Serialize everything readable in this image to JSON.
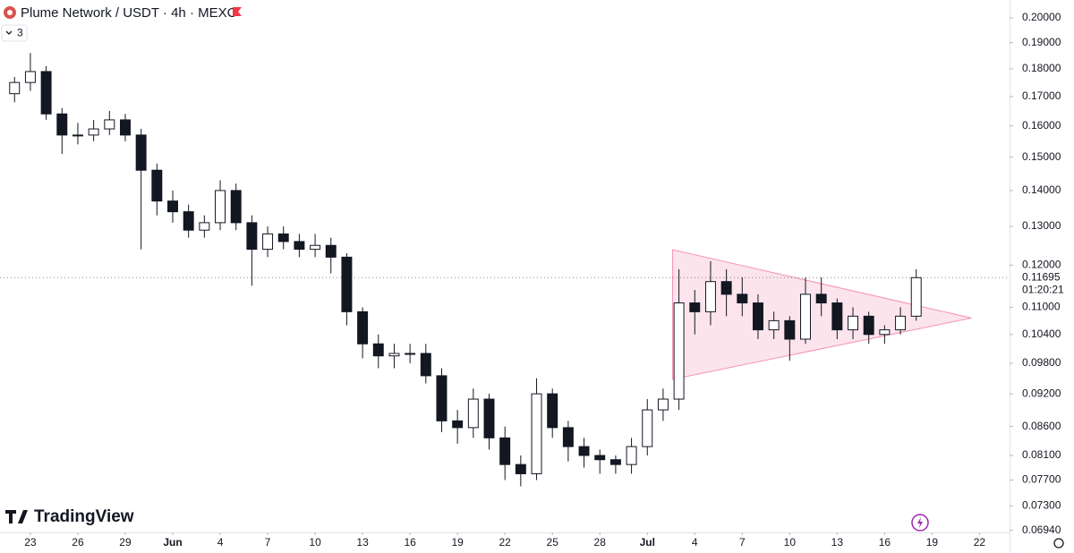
{
  "chart_data": {
    "type": "candlestick",
    "title": "Plume Network / USDT · 4h · MEXC",
    "indicator_count": "3",
    "brand": "TradingView",
    "log": true,
    "color_up": "#ffffff",
    "color_down": "#131722",
    "outline": "#131722",
    "xlim": [
      -1.92,
      61.9
    ],
    "xticks": [
      {
        "value": 0,
        "label": "23"
      },
      {
        "value": 3,
        "label": "26"
      },
      {
        "value": 6,
        "label": "29"
      },
      {
        "value": 9,
        "label": "Jun"
      },
      {
        "value": 12,
        "label": "4"
      },
      {
        "value": 15,
        "label": "7"
      },
      {
        "value": 18,
        "label": "10"
      },
      {
        "value": 21,
        "label": "13"
      },
      {
        "value": 24,
        "label": "16"
      },
      {
        "value": 27,
        "label": "19"
      },
      {
        "value": 30,
        "label": "22"
      },
      {
        "value": 33,
        "label": "25"
      },
      {
        "value": 36,
        "label": "28"
      },
      {
        "value": 39,
        "label": "Jul"
      },
      {
        "value": 42,
        "label": "4"
      },
      {
        "value": 45,
        "label": "7"
      },
      {
        "value": 48,
        "label": "10"
      },
      {
        "value": 51,
        "label": "13"
      },
      {
        "value": 54,
        "label": "16"
      },
      {
        "value": 57,
        "label": "19"
      },
      {
        "value": 60,
        "label": "22"
      }
    ],
    "ylim": [
      0.0691,
      0.2075
    ],
    "yticks": [
      {
        "value": 0.2,
        "label": "0.20000"
      },
      {
        "value": 0.19,
        "label": "0.19000"
      },
      {
        "value": 0.18,
        "label": "0.18000"
      },
      {
        "value": 0.17,
        "label": "0.17000"
      },
      {
        "value": 0.16,
        "label": "0.16000"
      },
      {
        "value": 0.15,
        "label": "0.15000"
      },
      {
        "value": 0.14,
        "label": "0.14000"
      },
      {
        "value": 0.13,
        "label": "0.13000"
      },
      {
        "value": 0.12,
        "label": "0.12000"
      },
      {
        "value": 0.11,
        "label": "0.11000"
      },
      {
        "value": 0.104,
        "label": "0.10400"
      },
      {
        "value": 0.098,
        "label": "0.09800"
      },
      {
        "value": 0.092,
        "label": "0.09200"
      },
      {
        "value": 0.086,
        "label": "0.08600"
      },
      {
        "value": 0.081,
        "label": "0.08100"
      },
      {
        "value": 0.077,
        "label": "0.07700"
      },
      {
        "value": 0.073,
        "label": "0.07300"
      },
      {
        "value": 0.0694,
        "label": "0.06940"
      }
    ],
    "x": [
      -1,
      0,
      1,
      2,
      3,
      4,
      5,
      6,
      7,
      8,
      9,
      10,
      11,
      12,
      13,
      14,
      15,
      16,
      17,
      18,
      19,
      20,
      21,
      22,
      23,
      24,
      25,
      26,
      27,
      28,
      29,
      30,
      31,
      32,
      33,
      34,
      35,
      36,
      37,
      38,
      39,
      40,
      41,
      42,
      43,
      44,
      45,
      46,
      47,
      48,
      49,
      50,
      51,
      52,
      53,
      54,
      55,
      56
    ],
    "open": [
      0.171,
      0.175,
      0.179,
      0.164,
      0.157,
      0.157,
      0.159,
      0.162,
      0.157,
      0.146,
      0.137,
      0.134,
      0.129,
      0.131,
      0.14,
      0.131,
      0.124,
      0.128,
      0.126,
      0.124,
      0.125,
      0.122,
      0.109,
      0.102,
      0.0995,
      0.1,
      0.1,
      0.0955,
      0.087,
      0.0858,
      0.091,
      0.084,
      0.0795,
      0.078,
      0.092,
      0.0858,
      0.0825,
      0.081,
      0.0803,
      0.0795,
      0.0825,
      0.089,
      0.091,
      0.111,
      0.109,
      0.116,
      0.113,
      0.111,
      0.105,
      0.107,
      0.103,
      0.113,
      0.111,
      0.105,
      0.108,
      0.104,
      0.105,
      0.108
    ],
    "high": [
      0.177,
      0.186,
      0.181,
      0.166,
      0.161,
      0.162,
      0.165,
      0.164,
      0.159,
      0.148,
      0.14,
      0.136,
      0.133,
      0.143,
      0.142,
      0.133,
      0.13,
      0.13,
      0.128,
      0.128,
      0.127,
      0.123,
      0.11,
      0.104,
      0.102,
      0.102,
      0.102,
      0.097,
      0.089,
      0.093,
      0.092,
      0.086,
      0.081,
      0.095,
      0.093,
      0.087,
      0.084,
      0.082,
      0.081,
      0.084,
      0.091,
      0.093,
      0.119,
      0.114,
      0.121,
      0.119,
      0.117,
      0.113,
      0.109,
      0.108,
      0.117,
      0.117,
      0.112,
      0.11,
      0.109,
      0.106,
      0.11,
      0.119
    ],
    "low": [
      0.168,
      0.172,
      0.162,
      0.151,
      0.154,
      0.155,
      0.157,
      0.155,
      0.124,
      0.133,
      0.131,
      0.127,
      0.127,
      0.129,
      0.129,
      0.115,
      0.122,
      0.124,
      0.122,
      0.122,
      0.118,
      0.106,
      0.099,
      0.097,
      0.097,
      0.098,
      0.094,
      0.085,
      0.083,
      0.084,
      0.082,
      0.077,
      0.076,
      0.077,
      0.084,
      0.08,
      0.079,
      0.078,
      0.078,
      0.078,
      0.081,
      0.087,
      0.089,
      0.104,
      0.106,
      0.108,
      0.108,
      0.103,
      0.103,
      0.0985,
      0.102,
      0.108,
      0.103,
      0.103,
      0.102,
      0.102,
      0.104,
      0.107
    ],
    "close": [
      0.175,
      0.179,
      0.164,
      0.157,
      0.157,
      0.159,
      0.162,
      0.157,
      0.146,
      0.137,
      0.134,
      0.129,
      0.131,
      0.14,
      0.131,
      0.124,
      0.128,
      0.126,
      0.124,
      0.125,
      0.122,
      0.109,
      0.102,
      0.0995,
      0.1,
      0.1,
      0.0955,
      0.087,
      0.0858,
      0.091,
      0.084,
      0.0795,
      0.078,
      0.092,
      0.0858,
      0.0825,
      0.081,
      0.0803,
      0.0795,
      0.0825,
      0.089,
      0.091,
      0.111,
      0.109,
      0.116,
      0.113,
      0.111,
      0.105,
      0.107,
      0.103,
      0.113,
      0.111,
      0.105,
      0.108,
      0.104,
      0.105,
      0.108,
      0.11695
    ],
    "last_price": 0.11695,
    "countdown": "01:20:21",
    "triangle": {
      "x": [
        40.6,
        40.6,
        59.5
      ],
      "y": [
        0.1239,
        0.0948,
        0.1076
      ],
      "color": "#e91e63"
    }
  }
}
